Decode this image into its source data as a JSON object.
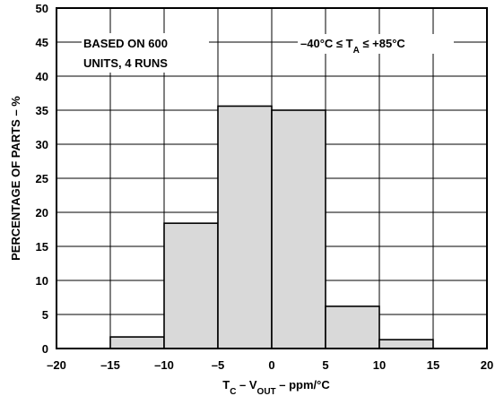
{
  "chart_data": {
    "type": "bar",
    "bins": [
      {
        "from": -20,
        "to": -15,
        "value": 0
      },
      {
        "from": -15,
        "to": -10,
        "value": 1.7
      },
      {
        "from": -10,
        "to": -5,
        "value": 18.4
      },
      {
        "from": -5,
        "to": 0,
        "value": 35.6
      },
      {
        "from": 0,
        "to": 5,
        "value": 35.0
      },
      {
        "from": 5,
        "to": 10,
        "value": 6.2
      },
      {
        "from": 10,
        "to": 15,
        "value": 1.3
      },
      {
        "from": 15,
        "to": 20,
        "value": 0
      }
    ],
    "xlim": [
      -20,
      20
    ],
    "ylim": [
      0,
      50
    ],
    "xticks": [
      "–20",
      "–15",
      "–10",
      "–5",
      "0",
      "5",
      "10",
      "15",
      "20"
    ],
    "yticks": [
      "0",
      "5",
      "10",
      "15",
      "20",
      "25",
      "30",
      "35",
      "40",
      "45",
      "50"
    ],
    "ylabel": "PERCENTAGE OF PARTS – %",
    "xlabel": {
      "t": "T",
      "t_sub": "C",
      "dash": " – V",
      "v_sub": "OUT",
      "rest": " – ppm/°C"
    },
    "annotations": {
      "left_line1": "BASED ON 600",
      "left_line2": "UNITS, 4 RUNS",
      "right_part1": "–40°C ≤ T",
      "right_sub": "A",
      "right_part2": " ≤ +85°C"
    },
    "grid": true,
    "colors": {
      "bar_fill": "#d9d9d9",
      "line": "#000000"
    }
  }
}
